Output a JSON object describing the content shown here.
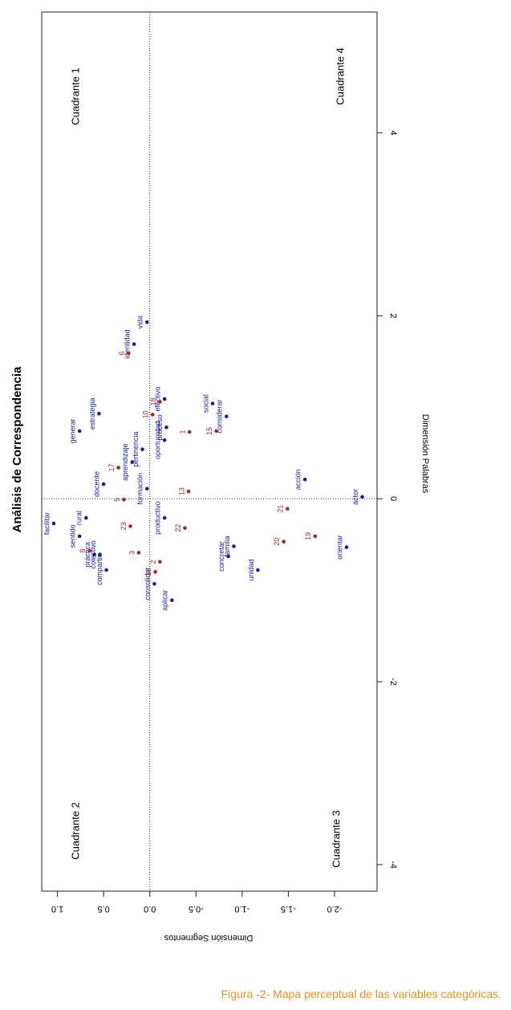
{
  "chart_data": {
    "type": "scatter",
    "title": "Análisis de Correspondencia",
    "xlabel": "Dimensión Palabras",
    "ylabel": "Dimensión Segmentos",
    "xlim": [
      -4.29,
      5.32
    ],
    "ylim": [
      -2.46,
      1.17
    ],
    "xticks": [
      -4,
      -2,
      0,
      2,
      4
    ],
    "yticks": [
      {
        "value": -2,
        "label": "-2.0"
      },
      -1.5,
      {
        "value": -1,
        "label": "-1.0"
      },
      -0.5,
      {
        "value": 0,
        "label": "0.0"
      },
      0.5,
      {
        "value": 1,
        "label": "1.0"
      }
    ],
    "xref": 0,
    "yref": 0,
    "annotations": [
      "Cuadrante 1",
      "Cuadrante 4",
      "Cuadrante 2",
      "Cuadrante 3"
    ],
    "series": [
      {
        "color": "#1a1a9c",
        "labels": [
          "facilitar",
          "sentido",
          "rural",
          "generar",
          "estrategia",
          "docente",
          "práctica",
          "colectivo",
          "compartir",
          "vida",
          "identidad",
          "social",
          "considerar",
          "oportunidad",
          "proceso",
          "formación",
          "pertinencia",
          "aprendizaje",
          "acción",
          "actor",
          "orientar",
          "concretar",
          "familia",
          "unidad",
          "aplicar",
          "productivo",
          "consolidar",
          "efectivo"
        ],
        "x": [
          -0.27,
          -0.41,
          -0.21,
          0.74,
          0.93,
          0.16,
          -0.61,
          -0.61,
          -0.78,
          1.93,
          1.69,
          1.04,
          0.9,
          0.64,
          0.78,
          0.11,
          0.54,
          0.4,
          0.21,
          0.02,
          -0.53,
          -0.63,
          -0.52,
          -0.78,
          -1.11,
          -0.21,
          -0.93,
          1.09
        ],
        "y": [
          1.04,
          0.76,
          0.69,
          0.76,
          0.55,
          0.5,
          0.6,
          0.54,
          0.47,
          0.03,
          0.17,
          -0.68,
          -0.83,
          -0.16,
          -0.18,
          0.03,
          0.08,
          0.19,
          -1.68,
          -2.3,
          -2.13,
          -0.85,
          -0.91,
          -1.17,
          -0.24,
          -0.16,
          -0.05,
          -0.16
        ]
      },
      {
        "color": "#a3262a",
        "labels": [
          "6",
          "18",
          "10",
          "15",
          "1",
          "17",
          "5",
          "13",
          "21",
          "20",
          "19",
          "22",
          "23",
          "8",
          "3",
          "16",
          "2"
        ],
        "x": [
          1.59,
          1.06,
          0.92,
          0.74,
          0.73,
          0.34,
          -0.01,
          0.08,
          -0.11,
          -0.47,
          -0.41,
          -0.32,
          -0.3,
          -0.57,
          -0.59,
          -0.8,
          -0.69
        ],
        "y": [
          0.23,
          -0.11,
          -0.03,
          -0.72,
          -0.43,
          0.34,
          0.28,
          -0.42,
          -1.49,
          -1.45,
          -1.79,
          -0.38,
          0.21,
          0.65,
          0.12,
          -0.06,
          -0.11
        ]
      }
    ],
    "caption": "Figura -2- Mapa perceptual de las variables categóricas."
  }
}
